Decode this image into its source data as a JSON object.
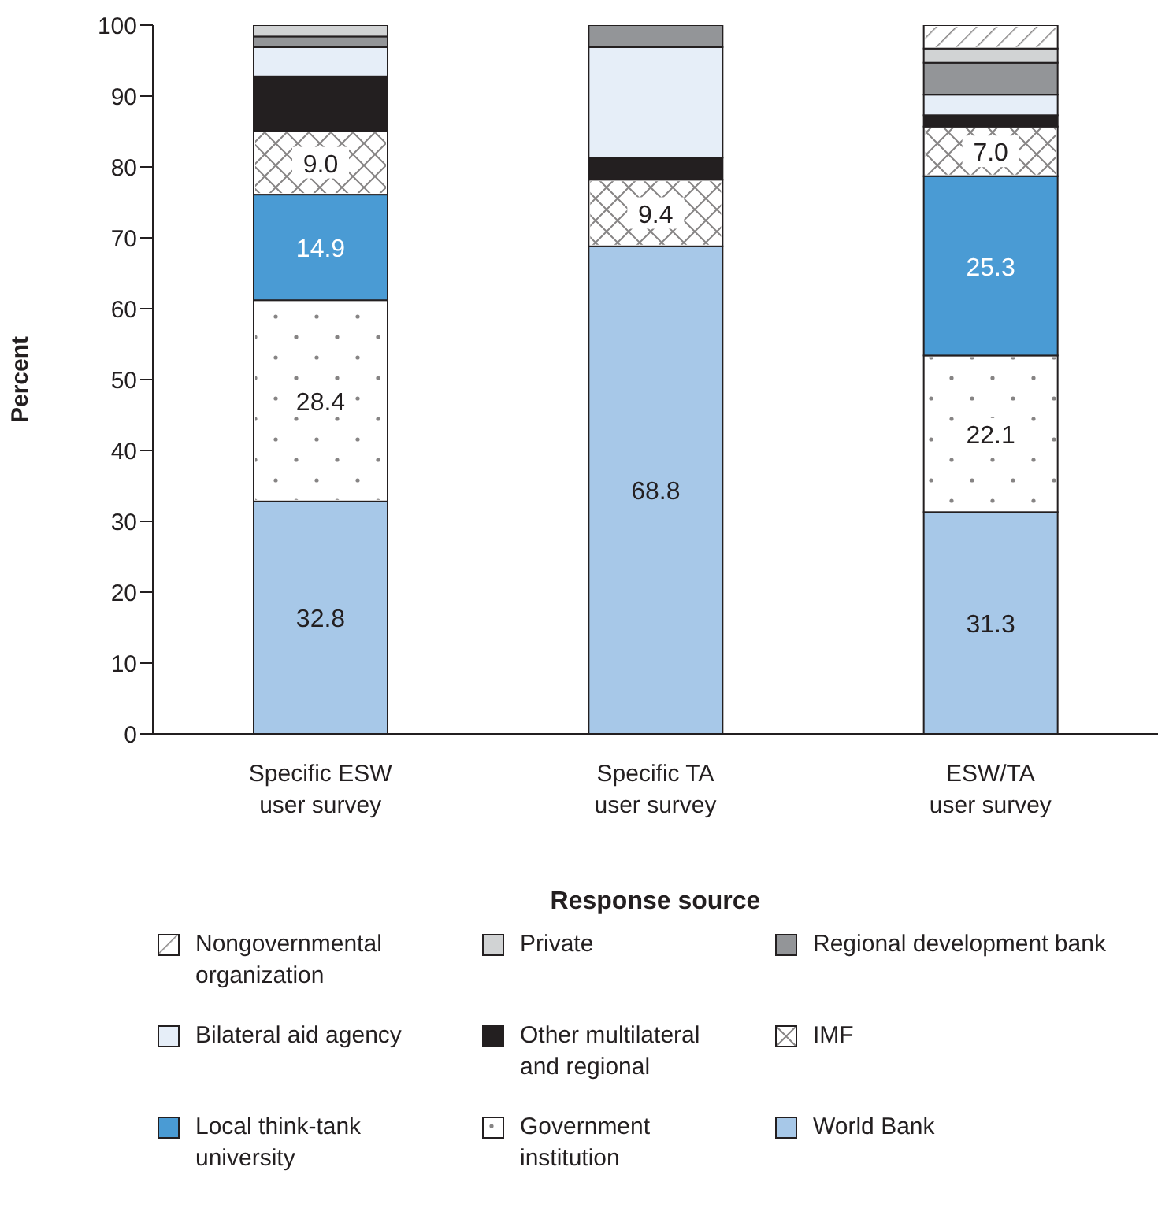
{
  "chart_data": {
    "type": "bar",
    "stacked": true,
    "xlabel": "Response source",
    "ylabel": "Percent",
    "categories": [
      "Specific ESW\nuser survey",
      "Specific TA\nuser survey",
      "ESW/TA\nuser survey"
    ],
    "ylim": [
      0,
      100
    ],
    "yticks": [
      0,
      10,
      20,
      30,
      40,
      50,
      60,
      70,
      80,
      90,
      100
    ],
    "grid": false,
    "legend": "bottom",
    "series": [
      {
        "name": "World Bank",
        "color": "#a7c8e8",
        "values": [
          32.8,
          68.8,
          31.3
        ],
        "value_labels": [
          "32.8",
          "68.8",
          "31.3"
        ]
      },
      {
        "name": "Government institution",
        "color": "#ffffff",
        "values": [
          28.4,
          0,
          22.1
        ],
        "value_labels": [
          "28.4",
          null,
          "22.1"
        ]
      },
      {
        "name": "Local think-tank university",
        "color": "#4a9bd4",
        "values": [
          14.9,
          0,
          25.3
        ],
        "value_labels": [
          "14.9",
          null,
          "25.3"
        ]
      },
      {
        "name": "IMF",
        "color": "#ffffff",
        "values": [
          9.0,
          9.4,
          7.0
        ],
        "value_labels": [
          "9.0",
          "9.4",
          "7.0"
        ]
      },
      {
        "name": "Other multilateral and regional",
        "color": "#231f20",
        "values": [
          7.7,
          3.1,
          1.6
        ]
      },
      {
        "name": "Bilateral aid agency",
        "color": "#e6eef8",
        "values": [
          4.1,
          15.6,
          2.9
        ]
      },
      {
        "name": "Regional development bank",
        "color": "#939598",
        "values": [
          1.5,
          3.1,
          4.5
        ]
      },
      {
        "name": "Private",
        "color": "#d1d3d4",
        "values": [
          1.6,
          0,
          2.0
        ]
      },
      {
        "name": "Nongovernmental organization",
        "color": "#ffffff",
        "values": [
          0,
          0,
          3.3
        ]
      }
    ]
  }
}
